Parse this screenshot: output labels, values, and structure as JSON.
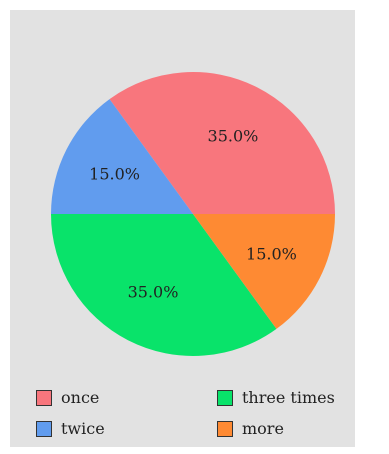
{
  "chart_data": {
    "type": "pie",
    "title": "",
    "start_angle_deg": 0,
    "direction": "counterclockwise",
    "series": [
      {
        "name": "once",
        "value": 35.0,
        "label": "35.0%",
        "color": "#f8767d"
      },
      {
        "name": "twice",
        "value": 15.0,
        "label": "15.0%",
        "color": "#619cee"
      },
      {
        "name": "three times",
        "value": 35.0,
        "label": "35.0%",
        "color": "#09e36a"
      },
      {
        "name": "more",
        "value": 15.0,
        "label": "15.0%",
        "color": "#fe8a33"
      }
    ],
    "legend_position": "bottom",
    "background": "#e2e2e2"
  }
}
